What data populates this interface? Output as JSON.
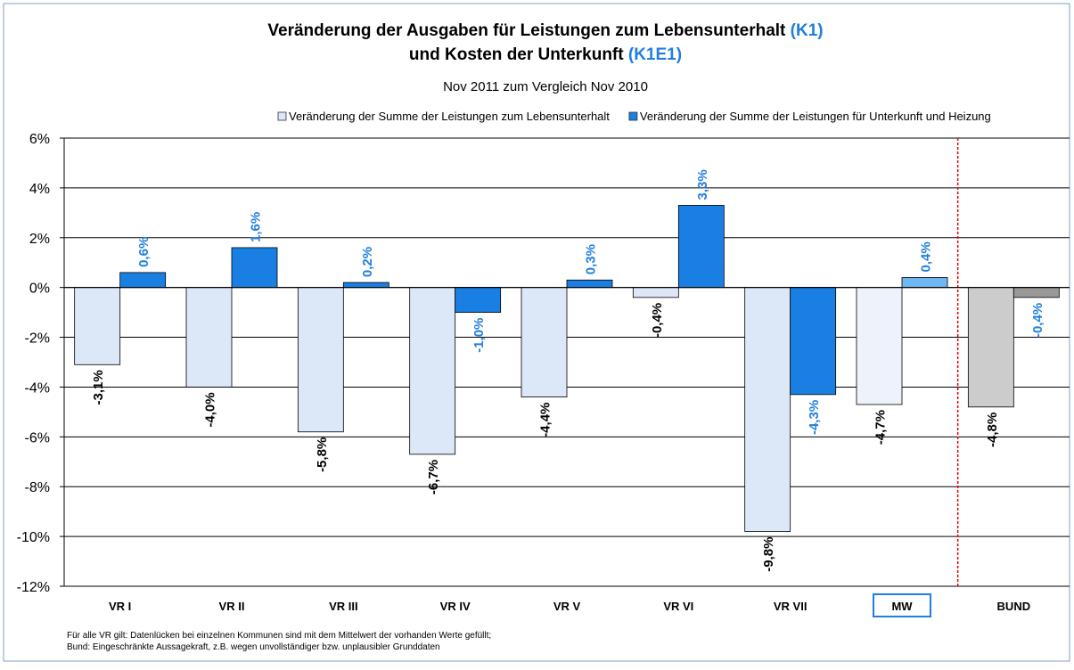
{
  "chart_data": {
    "type": "bar",
    "title": "Veränderung der Ausgaben für Leistungen zum Lebensunterhalt",
    "title_code": "(K1)",
    "title_line2": "und Kosten der Unterkunft",
    "title_line2_code": "(K1E1)",
    "subtitle": "Nov 2011 zum Vergleich Nov 2010",
    "categories": [
      "VR I",
      "VR II",
      "VR III",
      "VR IV",
      "VR V",
      "VR VI",
      "VR VII",
      "MW",
      "BUND"
    ],
    "series": [
      {
        "name": "Veränderung der Summe der Leistungen zum Lebensunterhalt",
        "color": "#dce7f8",
        "colors": [
          "#dce7f8",
          "#dce7f8",
          "#dce7f8",
          "#dce7f8",
          "#dce7f8",
          "#dce7f8",
          "#dce7f8",
          "#eef3fb",
          "#cccccc"
        ],
        "label_color": "#000000",
        "values": [
          -3.1,
          -4.0,
          -5.8,
          -6.7,
          -4.4,
          -0.4,
          -9.8,
          -4.7,
          -4.8
        ],
        "value_labels": [
          "-3,1%",
          "-4,0%",
          "-5,8%",
          "-6,7%",
          "-4,4%",
          "-0,4%",
          "-9,8%",
          "-4,7%",
          "-4,8%"
        ]
      },
      {
        "name": "Veränderung der Summe der Leistungen für Unterkunft und Heizung",
        "color": "#1a7fe3",
        "colors": [
          "#1a7fe3",
          "#1a7fe3",
          "#1a7fe3",
          "#1a7fe3",
          "#1a7fe3",
          "#1a7fe3",
          "#1a7fe3",
          "#6fb6f2",
          "#999999"
        ],
        "label_color": "#1f7fe0",
        "values": [
          0.6,
          1.6,
          0.2,
          -1.0,
          0.3,
          3.3,
          -4.3,
          0.4,
          -0.4
        ],
        "value_labels": [
          "0,6%",
          "1,6%",
          "0,2%",
          "-1,0%",
          "0,3%",
          "3,3%",
          "-4,3%",
          "0,4%",
          "-0,4%"
        ]
      }
    ],
    "ylim": [
      -12,
      6
    ],
    "yticks": [
      {
        "value": -12,
        "label": "-12%"
      },
      {
        "value": -10,
        "label": "-10%"
      },
      {
        "value": -8,
        "label": "-8%"
      },
      {
        "value": -6,
        "label": "-6%"
      },
      {
        "value": -4,
        "label": "-4%"
      },
      {
        "value": -2,
        "label": "-2%"
      },
      {
        "value": 0,
        "label": "0%"
      },
      {
        "value": 2,
        "label": "2%"
      },
      {
        "value": 4,
        "label": "4%"
      },
      {
        "value": 6,
        "label": "6%"
      }
    ],
    "grid": true,
    "notes": [
      "Für alle VR gilt: Datenlücken bei einzelnen Kommunen sind mit dem Mittelwert der vorhanden Werte gefüllt;",
      "Bund: Eingeschränkte Aussagekraft, z.B. wegen unvollständiger bzw. unplausibler Grunddaten"
    ]
  }
}
